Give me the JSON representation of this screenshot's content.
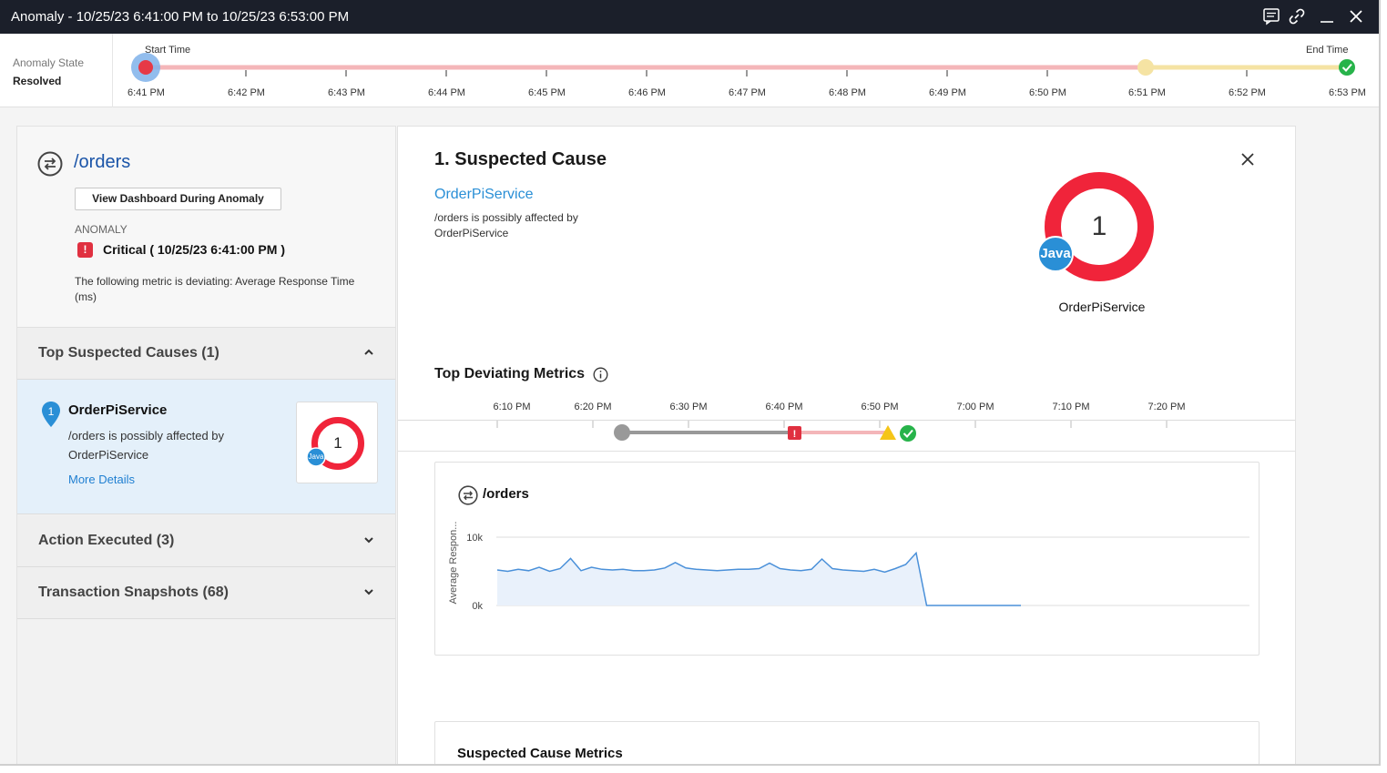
{
  "window": {
    "title": "Anomaly - 10/25/23 6:41:00 PM to 10/25/23 6:53:00 PM"
  },
  "top_timeline": {
    "state_label": "Anomaly State",
    "state_value": "Resolved",
    "start_caption": "Start Time",
    "end_caption": "End Time",
    "ticks": [
      "6:41 PM",
      "6:42 PM",
      "6:43 PM",
      "6:44 PM",
      "6:45 PM",
      "6:46 PM",
      "6:47 PM",
      "6:48 PM",
      "6:49 PM",
      "6:50 PM",
      "6:51 PM",
      "6:52 PM",
      "6:53 PM"
    ],
    "colors": {
      "critical": "#f4b6b9",
      "warning": "#f5e3a3",
      "start_dot": "#e63946",
      "start_halo": "#7fb2ea",
      "end_ok": "#27b34a"
    }
  },
  "left_panel": {
    "entity_title": "/orders",
    "dashboard_button": "View Dashboard During Anomaly",
    "anomaly_label": "ANOMALY",
    "severity": "Critical ( 10/25/23 6:41:00 PM )",
    "severity_icon": "!",
    "metric_text": "The following metric is deviating: Average Response Time (ms)",
    "sections": {
      "top_causes": "Top Suspected Causes (1)",
      "actions": "Action Executed (3)",
      "snapshots": "Transaction Snapshots (68)"
    },
    "cause": {
      "pin_number": "1",
      "name": "OrderPiService",
      "desc": "/orders is possibly affected by OrderPiService",
      "link": "More Details",
      "donut_count": "1",
      "badge": "Java"
    }
  },
  "right_panel": {
    "title": "1. Suspected Cause",
    "service_link": "OrderPiService",
    "desc": "/orders is possibly affected by OrderPiService",
    "donut_count": "1",
    "donut_badge": "Java",
    "donut_label": "OrderPiService",
    "deviating_title": "Top Deviating Metrics",
    "deviating_ticks": [
      "6:10 PM",
      "6:20 PM",
      "6:30 PM",
      "6:40 PM",
      "6:50 PM",
      "7:00 PM",
      "7:10 PM",
      "7:20 PM"
    ],
    "chart_card_title": "/orders",
    "suspected_metrics_title": "Suspected Cause Metrics"
  },
  "chart_data": {
    "type": "area",
    "title": "/orders",
    "xlabel": "",
    "ylabel": "Average Respon...",
    "y_tick_labels": [
      "10k",
      "0k"
    ],
    "ylim": [
      0,
      10000
    ],
    "grid": true,
    "legend": "none",
    "color": "#4a90d9",
    "fill": "#e9f1fb",
    "series": [
      {
        "values": [
          5200,
          5000,
          5300,
          5100,
          5600,
          5000,
          5400,
          6900,
          5100,
          5600,
          5300,
          5200,
          5300,
          5100,
          5100,
          5200,
          5500,
          6300,
          5500,
          5300,
          5200,
          5100,
          5200,
          5300,
          5300,
          5400,
          6200,
          5400,
          5200,
          5100,
          5300,
          6800,
          5400,
          5200,
          5100,
          5000,
          5300,
          4900,
          5400,
          6000,
          7700,
          0,
          0,
          0,
          0,
          0,
          0,
          0,
          0,
          0,
          0
        ]
      }
    ]
  }
}
